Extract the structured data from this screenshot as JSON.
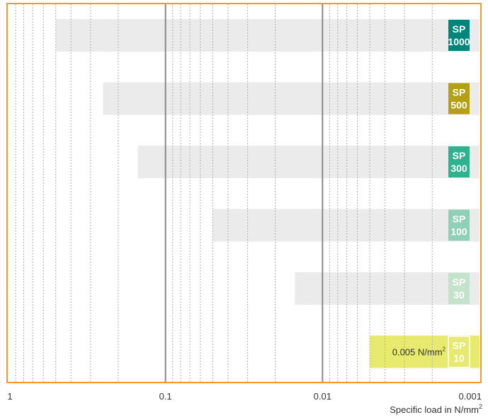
{
  "chart_data": {
    "type": "bar",
    "orientation": "horizontal",
    "x_scale": "log",
    "x_reversed": true,
    "xlim": [
      1,
      0.001
    ],
    "xlabel": "Specific load in N/mm",
    "xlabel_superscript": "2",
    "xticks": [
      {
        "value": 1,
        "label": "1"
      },
      {
        "value": 0.1,
        "label": "0.1"
      },
      {
        "value": 0.01,
        "label": "0.01"
      },
      {
        "value": 0.001,
        "label": "0.001"
      }
    ],
    "grid": true,
    "series": [
      {
        "line1": "SP",
        "line2": "1000",
        "min_load": 0.001,
        "max_load": 0.5,
        "color": "#00857a"
      },
      {
        "line1": "SP",
        "line2": "500",
        "min_load": 0.001,
        "max_load": 0.25,
        "color": "#b3a014"
      },
      {
        "line1": "SP",
        "line2": "300",
        "min_load": 0.001,
        "max_load": 0.15,
        "color": "#2fb38f"
      },
      {
        "line1": "SP",
        "line2": "100",
        "min_load": 0.001,
        "max_load": 0.05,
        "color": "#8fd0b8"
      },
      {
        "line1": "SP",
        "line2": "30",
        "min_load": 0.001,
        "max_load": 0.015,
        "color": "#c3e3ca"
      },
      {
        "line1": "SP",
        "line2": "10",
        "min_load": 0.001,
        "max_load": 0.005,
        "color": "#e7ea6e",
        "annotation": "0.005 N/mm",
        "annotation_superscript": "2"
      }
    ],
    "colors": {
      "frame": "#f29a2e",
      "bar": "#ebebeb",
      "highlight": "#e7ea6e",
      "major_grid": "#888888",
      "minor_grid": "#b0b0b0"
    }
  }
}
